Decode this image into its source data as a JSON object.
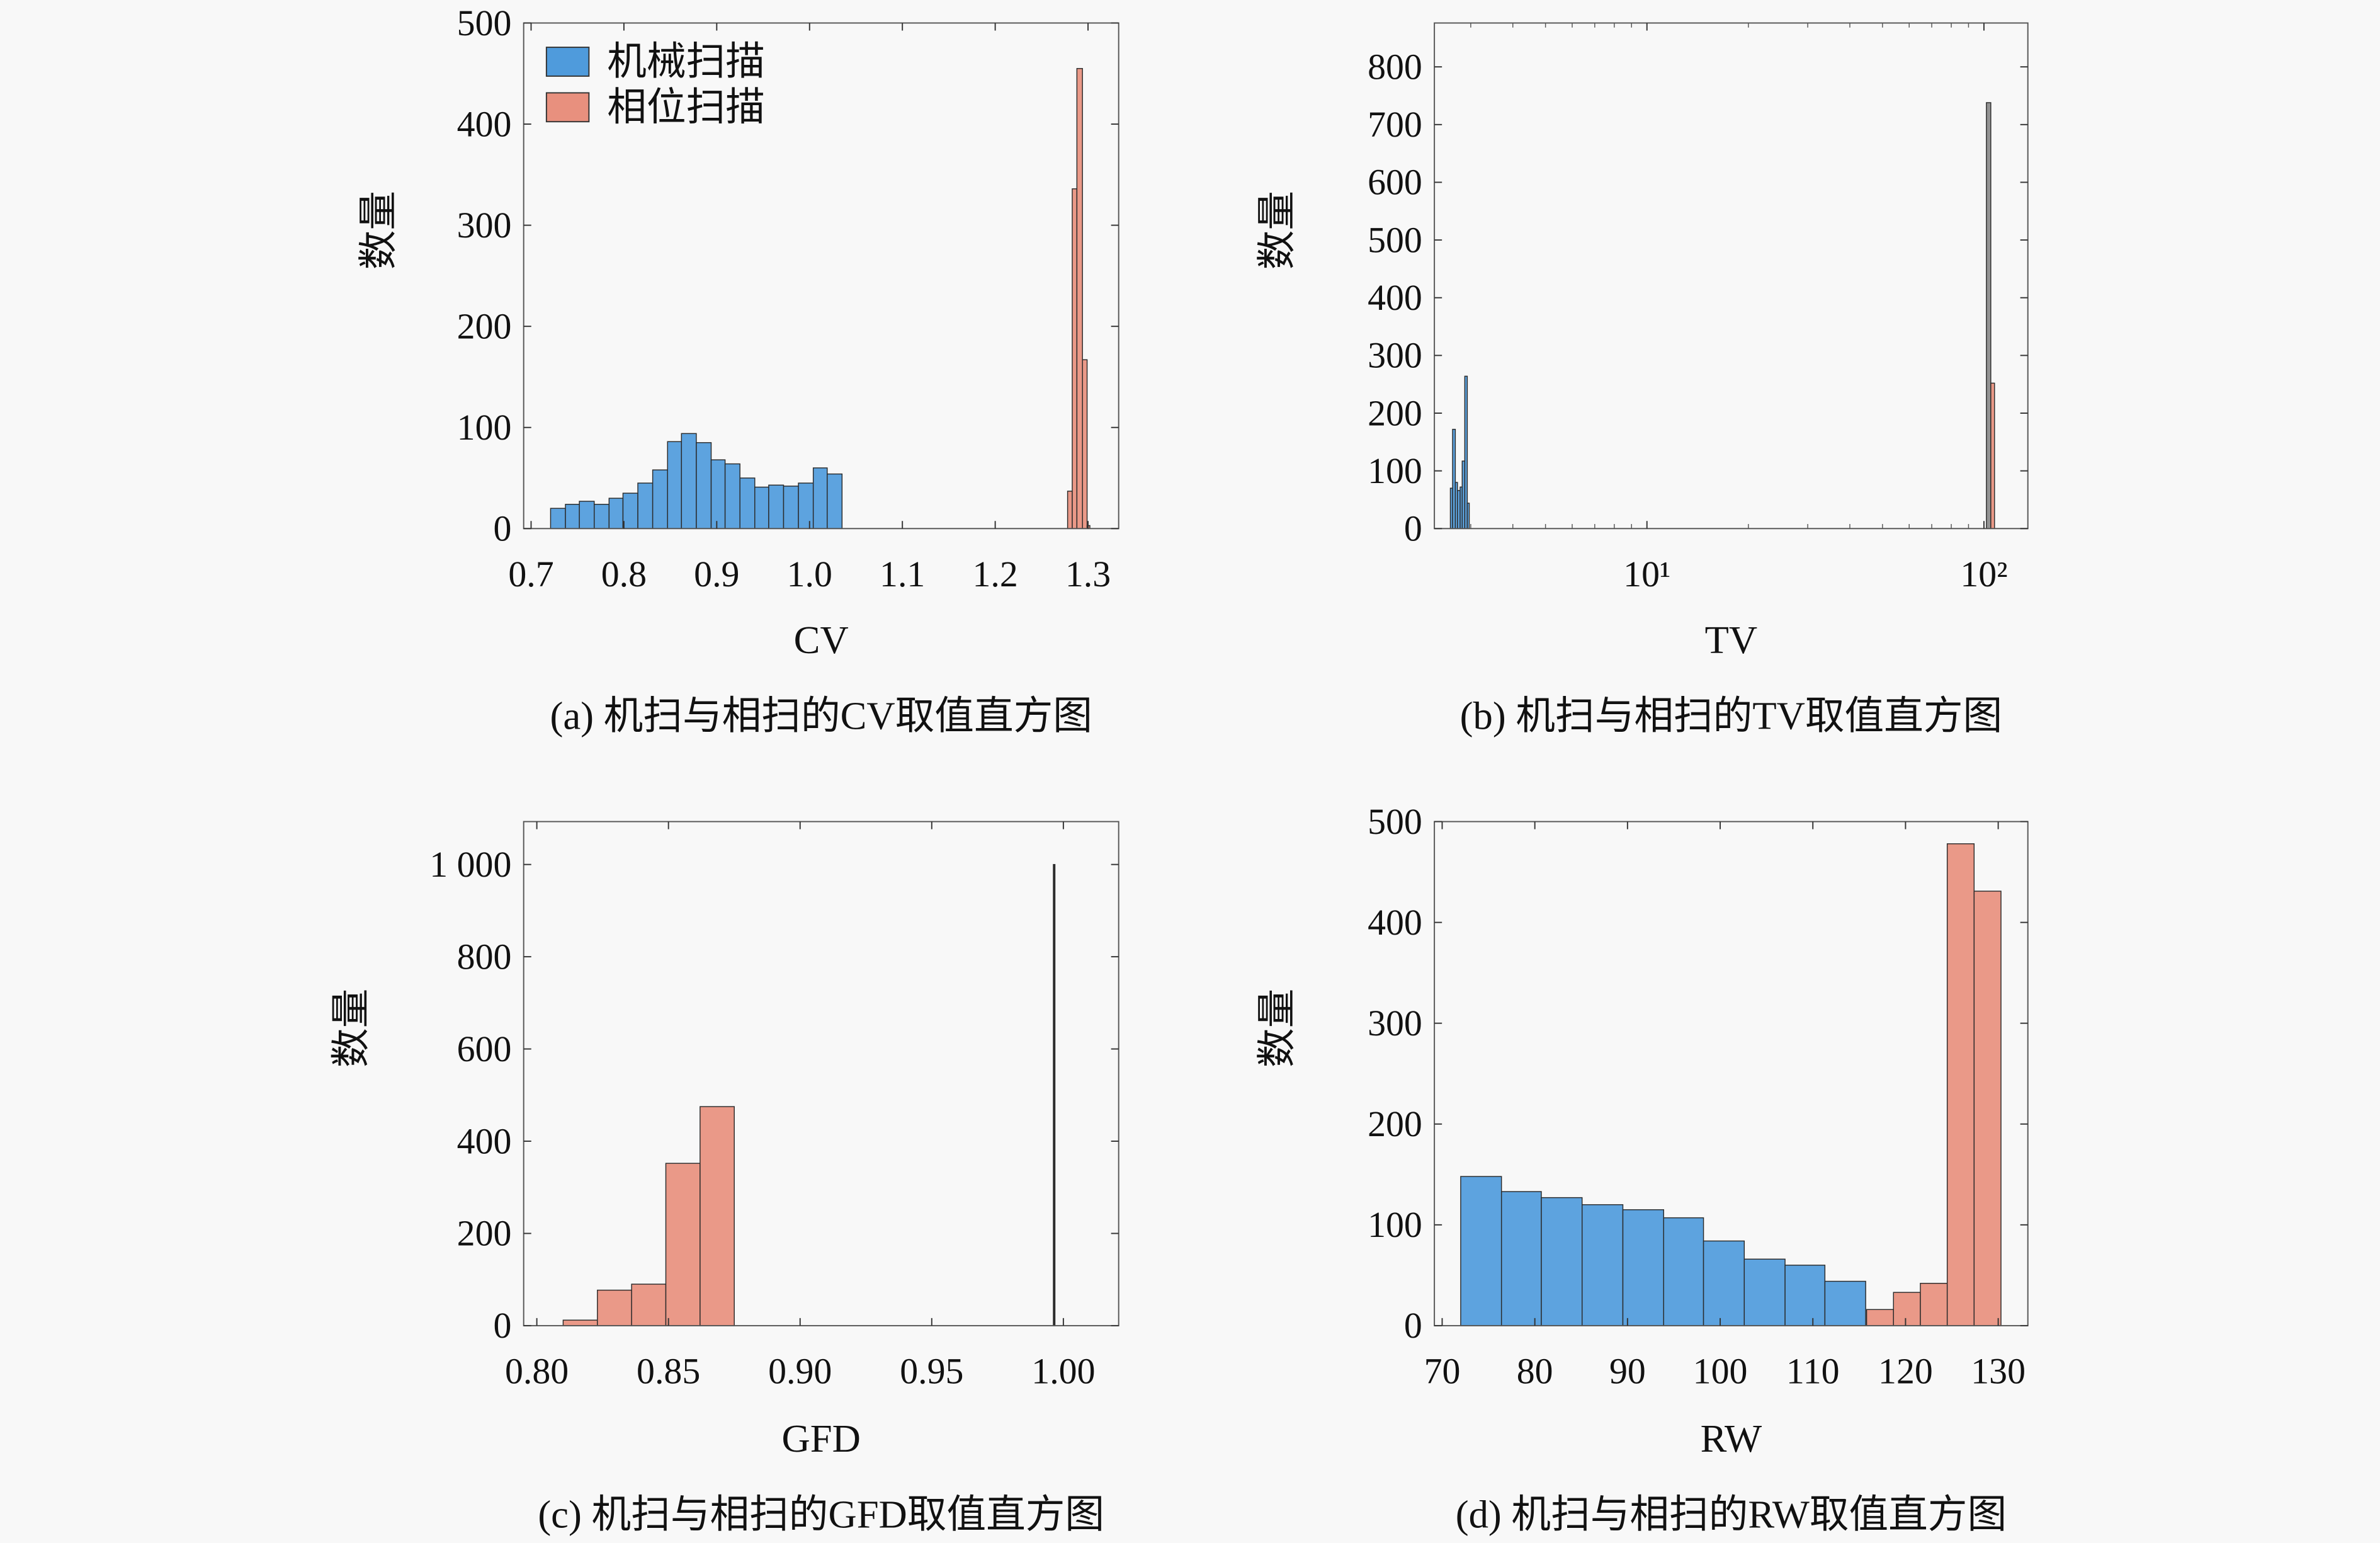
{
  "chart_data": [
    {
      "type": "bar",
      "histogram": true,
      "caption": "(a) 机扫与相扫的CV取值直方图",
      "xlabel": "CV",
      "ylabel": "数量",
      "xscale": "linear",
      "xlim": [
        0.692,
        1.333
      ],
      "ylim": [
        0,
        500
      ],
      "xticks": [
        0.7,
        0.8,
        0.9,
        1.0,
        1.1,
        1.2,
        1.3
      ],
      "xtick_labels": [
        "0.7",
        "0.8",
        "0.9",
        "1.0",
        "1.1",
        "1.2",
        "1.3"
      ],
      "yticks": [
        0,
        100,
        200,
        300,
        400,
        500
      ],
      "ytick_labels": [
        "0",
        "100",
        "200",
        "300",
        "400",
        "500"
      ],
      "grid": false,
      "legend": {
        "position": "top-left",
        "entries": [
          "机械扫描",
          "相位扫描"
        ]
      },
      "series": [
        {
          "name": "机械扫描",
          "color": "#4f9bdc",
          "bin_edges": [
            0.721,
            0.737,
            0.752,
            0.768,
            0.784,
            0.799,
            0.815,
            0.831,
            0.847,
            0.862,
            0.878,
            0.894,
            0.909,
            0.925,
            0.941,
            0.956,
            0.972,
            0.988,
            1.004,
            1.019,
            1.035
          ],
          "values": [
            20,
            24,
            27,
            24,
            30,
            35,
            45,
            58,
            86,
            94,
            85,
            68,
            64,
            50,
            41,
            43,
            42,
            45,
            60,
            54
          ]
        },
        {
          "name": "相位扫描",
          "color": "#e8907e",
          "bin_edges": [
            1.278,
            1.283,
            1.288,
            1.294,
            1.299,
            1.302
          ],
          "values": [
            37,
            336,
            455,
            167,
            3
          ]
        }
      ]
    },
    {
      "type": "bar",
      "histogram": true,
      "caption": "(b) 机扫与相扫的TV取值直方图",
      "xlabel": "TV",
      "ylabel": "数量",
      "xscale": "log",
      "xlim": [
        2.34,
        135
      ],
      "ylim": [
        0,
        876
      ],
      "xticks": [
        10,
        100
      ],
      "xtick_labels": [
        "10¹",
        "10²"
      ],
      "yticks": [
        0,
        100,
        200,
        300,
        400,
        500,
        600,
        700,
        800
      ],
      "ytick_labels": [
        "0",
        "100",
        "200",
        "300",
        "400",
        "500",
        "600",
        "700",
        "800"
      ],
      "grid": false,
      "series": [
        {
          "name": "机械扫描",
          "color": "#4f9bdc",
          "bin_edges": [
            2.61,
            2.65,
            2.7,
            2.74,
            2.79,
            2.83,
            2.88,
            2.93,
            2.97
          ],
          "values": [
            70,
            172,
            80,
            66,
            72,
            117,
            264,
            44
          ]
        },
        {
          "color": "#8a8a8a",
          "bin_edges": [
            101.7,
            104.8
          ],
          "values": [
            738
          ]
        },
        {
          "name": "相位扫描",
          "color": "#e8907e",
          "bin_edges": [
            104.8,
            107.5
          ],
          "values": [
            252
          ]
        }
      ]
    },
    {
      "type": "bar",
      "histogram": true,
      "caption": "(c) 机扫与相扫的GFD取值直方图",
      "xlabel": "GFD",
      "ylabel": "数量",
      "xscale": "linear",
      "xlim": [
        0.795,
        1.021
      ],
      "ylim": [
        0,
        1093
      ],
      "xticks": [
        0.8,
        0.85,
        0.9,
        0.95,
        1.0
      ],
      "xtick_labels": [
        "0.80",
        "0.85",
        "0.90",
        "0.95",
        "1.00"
      ],
      "yticks": [
        0,
        200,
        400,
        600,
        800,
        1000
      ],
      "ytick_labels": [
        "0",
        "200",
        "400",
        "600",
        "800",
        "1 000"
      ],
      "grid": false,
      "series": [
        {
          "name": "机械扫描",
          "color": "#222222",
          "bin_edges": [
            0.9962,
            0.9968
          ],
          "values": [
            1000
          ]
        },
        {
          "name": "相位扫描",
          "color": "#e8907e",
          "bin_edges": [
            0.81,
            0.823,
            0.836,
            0.849,
            0.862,
            0.875
          ],
          "values": [
            12,
            77,
            90,
            352,
            475
          ]
        }
      ]
    },
    {
      "type": "bar",
      "histogram": true,
      "caption": "(d) 机扫与相扫的RW取值直方图",
      "xlabel": "RW",
      "ylabel": "数量",
      "xscale": "linear",
      "xlim": [
        69.16,
        133.2
      ],
      "ylim": [
        0,
        500
      ],
      "xticks": [
        70,
        80,
        90,
        100,
        110,
        120,
        130
      ],
      "xtick_labels": [
        "70",
        "80",
        "90",
        "100",
        "110",
        "120",
        "130"
      ],
      "yticks": [
        0,
        100,
        200,
        300,
        400,
        500
      ],
      "ytick_labels": [
        "0",
        "100",
        "200",
        "300",
        "400",
        "500"
      ],
      "grid": false,
      "series": [
        {
          "name": "机械扫描",
          "color": "#4f9bdc",
          "bin_edges": [
            72.0,
            76.4,
            80.7,
            85.1,
            89.5,
            93.9,
            98.2,
            102.6,
            107.0,
            111.3,
            115.7
          ],
          "values": [
            148,
            133,
            127,
            120,
            115,
            107,
            84,
            66,
            60,
            44
          ]
        },
        {
          "name": "相位扫描",
          "color": "#e8907e",
          "bin_edges": [
            115.8,
            118.7,
            121.6,
            124.5,
            127.4,
            130.3
          ],
          "values": [
            16,
            33,
            42,
            478,
            431
          ]
        }
      ]
    }
  ]
}
